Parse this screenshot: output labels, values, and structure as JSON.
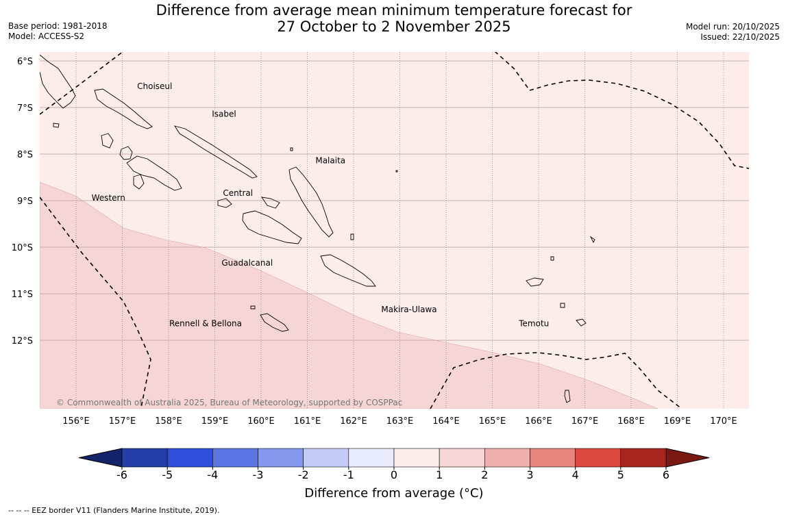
{
  "title_line1": "Difference from average mean minimum temperature forecast for",
  "title_line2": "27 October to 2 November 2025",
  "base_period": "Base period: 1981-2018",
  "model": "Model: ACCESS-S2",
  "model_run": "Model run: 20/10/2025",
  "issued": "Issued: 22/10/2025",
  "copyright": "© Commonwealth of Australia 2025, Bureau of Meteorology, supported by COSPPac",
  "lon_labels": [
    "156°E",
    "157°E",
    "158°E",
    "159°E",
    "160°E",
    "161°E",
    "162°E",
    "163°E",
    "164°E",
    "165°E",
    "166°E",
    "167°E",
    "168°E",
    "169°E",
    "170°E"
  ],
  "lat_labels": [
    "6°S",
    "7°S",
    "8°S",
    "9°S",
    "10°S",
    "11°S",
    "12°S"
  ],
  "regions": [
    {
      "name": "Choiseul",
      "lon": 157.7,
      "lat": -6.6
    },
    {
      "name": "Isabel",
      "lon": 159.2,
      "lat": -7.2
    },
    {
      "name": "Malaita",
      "lon": 161.5,
      "lat": -8.2
    },
    {
      "name": "Central",
      "lon": 159.5,
      "lat": -8.9
    },
    {
      "name": "Western",
      "lon": 156.7,
      "lat": -9.0
    },
    {
      "name": "Guadalcanal",
      "lon": 159.7,
      "lat": -10.4
    },
    {
      "name": "Makira-Ulawa",
      "lon": 163.2,
      "lat": -11.4
    },
    {
      "name": "Temotu",
      "lon": 165.9,
      "lat": -11.7
    },
    {
      "name": "Rennell & Bellona",
      "lon": 158.8,
      "lat": -11.7
    }
  ],
  "colorbar": {
    "ticks": [
      "-6",
      "-5",
      "-4",
      "-3",
      "-2",
      "-1",
      "0",
      "1",
      "2",
      "3",
      "4",
      "5",
      "6"
    ],
    "colors": [
      "#243ea8",
      "#2f4fdb",
      "#5b75e3",
      "#8499ec",
      "#c2caf6",
      "#e9ecfc",
      "#fcecea",
      "#f6d6d4",
      "#eeb0ad",
      "#e6867f",
      "#d9473e",
      "#a6251f"
    ],
    "low_extend": "#14226a",
    "high_extend": "#7a1814",
    "label": "Difference from average (°C)"
  },
  "map_fills": {
    "light": "#fcecea",
    "medium": "#f6d6d4"
  },
  "footer": "-- -- -- EEZ border V11 (Flanders Marine Institute, 2019)."
}
